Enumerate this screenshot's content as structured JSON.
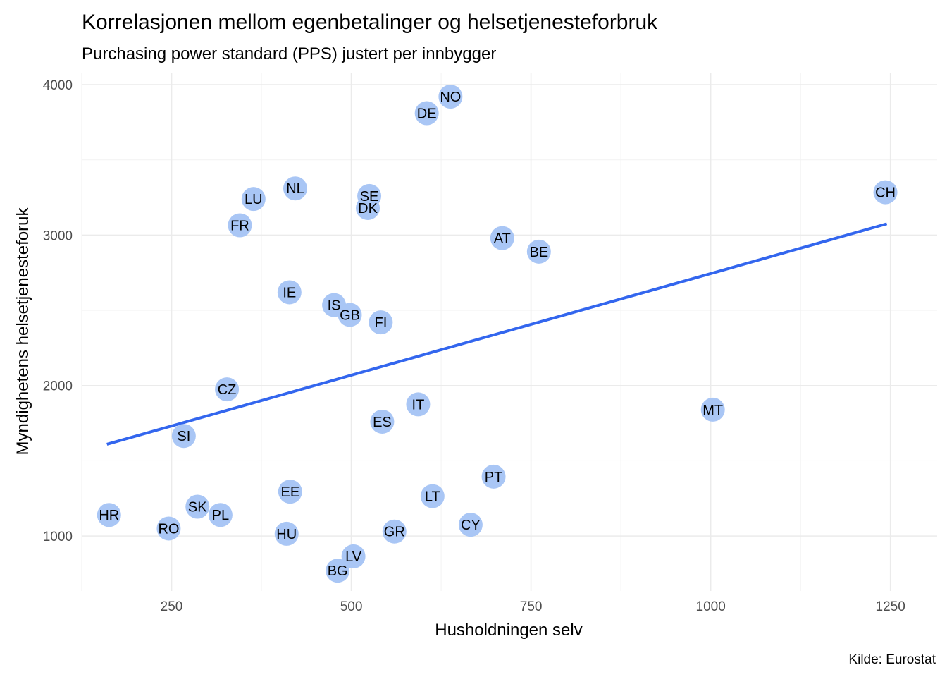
{
  "chart_data": {
    "type": "scatter",
    "title": "Korrelasjonen mellom egenbetalinger og helsetjenesteforbruk",
    "subtitle": "Purchasing power standard (PPS) justert per innbygger",
    "xlabel": "Husholdningen selv",
    "ylabel": "Myndighetens helsetjenesteforuk",
    "caption": "Kilde: Eurostat",
    "xlim": [
      125,
      1315
    ],
    "ylim": [
      635,
      4075
    ],
    "x_ticks": [
      250,
      500,
      750,
      1000,
      1250
    ],
    "x_tick_labels": [
      "250",
      "500",
      "750",
      "1000",
      "1250"
    ],
    "y_ticks": [
      1000,
      2000,
      3000,
      4000
    ],
    "y_tick_labels": [
      "1000",
      "2000",
      "3000",
      "4000"
    ],
    "grid": true,
    "legend": "none",
    "point_color": "#a9c6f5",
    "trend_color": "#3366ee",
    "trend_line": {
      "x": [
        160,
        1245
      ],
      "y": [
        1610,
        3075
      ]
    },
    "points": [
      {
        "label": "NO",
        "x": 638,
        "y": 3920
      },
      {
        "label": "DE",
        "x": 605,
        "y": 3810
      },
      {
        "label": "NL",
        "x": 422,
        "y": 3310
      },
      {
        "label": "SE",
        "x": 525,
        "y": 3260
      },
      {
        "label": "DK",
        "x": 523,
        "y": 3180
      },
      {
        "label": "LU",
        "x": 364,
        "y": 3240
      },
      {
        "label": "FR",
        "x": 345,
        "y": 3065
      },
      {
        "label": "CH",
        "x": 1243,
        "y": 3285
      },
      {
        "label": "AT",
        "x": 710,
        "y": 2980
      },
      {
        "label": "BE",
        "x": 761,
        "y": 2890
      },
      {
        "label": "IE",
        "x": 414,
        "y": 2620
      },
      {
        "label": "IS",
        "x": 476,
        "y": 2535
      },
      {
        "label": "GB",
        "x": 498,
        "y": 2470
      },
      {
        "label": "FI",
        "x": 541,
        "y": 2420
      },
      {
        "label": "CZ",
        "x": 327,
        "y": 1975
      },
      {
        "label": "IT",
        "x": 593,
        "y": 1875
      },
      {
        "label": "ES",
        "x": 543,
        "y": 1760
      },
      {
        "label": "MT",
        "x": 1003,
        "y": 1840
      },
      {
        "label": "SI",
        "x": 267,
        "y": 1665
      },
      {
        "label": "PT",
        "x": 698,
        "y": 1395
      },
      {
        "label": "EE",
        "x": 415,
        "y": 1295
      },
      {
        "label": "LT",
        "x": 613,
        "y": 1265
      },
      {
        "label": "SK",
        "x": 286,
        "y": 1195
      },
      {
        "label": "PL",
        "x": 318,
        "y": 1140
      },
      {
        "label": "HR",
        "x": 163,
        "y": 1140
      },
      {
        "label": "CY",
        "x": 666,
        "y": 1075
      },
      {
        "label": "RO",
        "x": 246,
        "y": 1050
      },
      {
        "label": "GR",
        "x": 560,
        "y": 1030
      },
      {
        "label": "HU",
        "x": 410,
        "y": 1015
      },
      {
        "label": "LV",
        "x": 503,
        "y": 865
      },
      {
        "label": "BG",
        "x": 481,
        "y": 770
      }
    ]
  }
}
